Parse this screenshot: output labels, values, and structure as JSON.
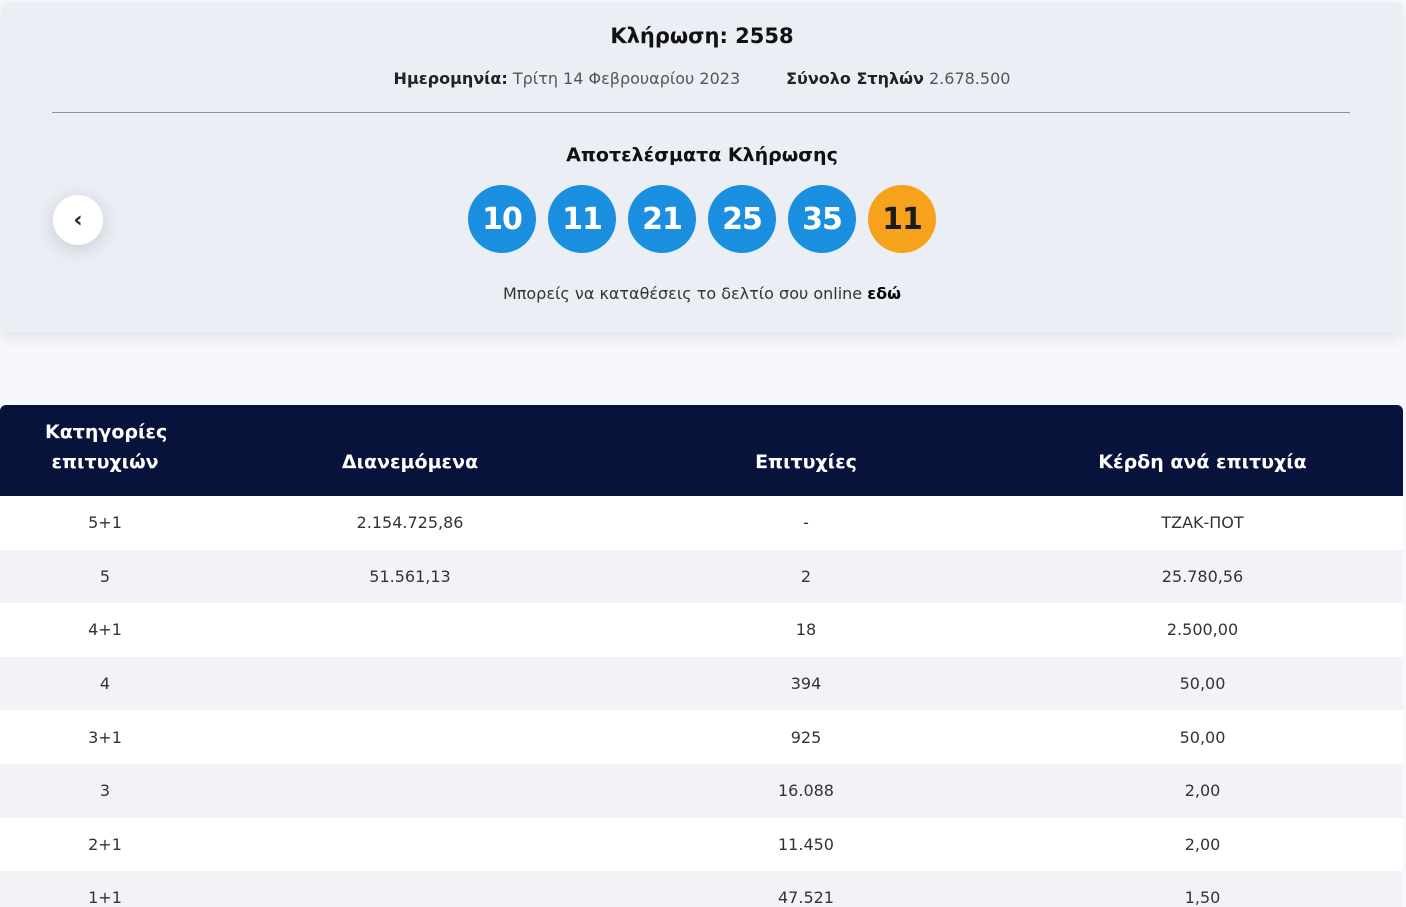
{
  "draw": {
    "title": "Κλήρωση: 2558",
    "date_label": "Ημερομηνία:",
    "date_value": "Τρίτη 14 Φεβρουαρίου 2023",
    "columns_label": "Σύνολο Στηλών",
    "columns_value": "2.678.500",
    "results_title": "Αποτελέσματα Κλήρωσης",
    "numbers": [
      "10",
      "11",
      "21",
      "25",
      "35"
    ],
    "joker": "11",
    "online_text": "Μπορείς να καταθέσεις το δελτίο σου online",
    "online_link": "εδώ",
    "prev_icon": "‹"
  },
  "colors": {
    "ball_blue": "#1a8fe0",
    "ball_joker": "#f6a21d",
    "table_header": "#07133b"
  },
  "table": {
    "headers": [
      "Κατηγορίες επιτυχιών",
      "Διανεμόμενα",
      "Επιτυχίες",
      "Κέρδη ανά επιτυχία"
    ],
    "rows": [
      [
        "5+1",
        "2.154.725,86",
        "-",
        "ΤΖΑΚ-ΠΟΤ"
      ],
      [
        "5",
        "51.561,13",
        "2",
        "25.780,56"
      ],
      [
        "4+1",
        "",
        "18",
        "2.500,00"
      ],
      [
        "4",
        "",
        "394",
        "50,00"
      ],
      [
        "3+1",
        "",
        "925",
        "50,00"
      ],
      [
        "3",
        "",
        "16.088",
        "2,00"
      ],
      [
        "2+1",
        "",
        "11.450",
        "2,00"
      ],
      [
        "1+1",
        "",
        "47.521",
        "1,50"
      ]
    ]
  }
}
